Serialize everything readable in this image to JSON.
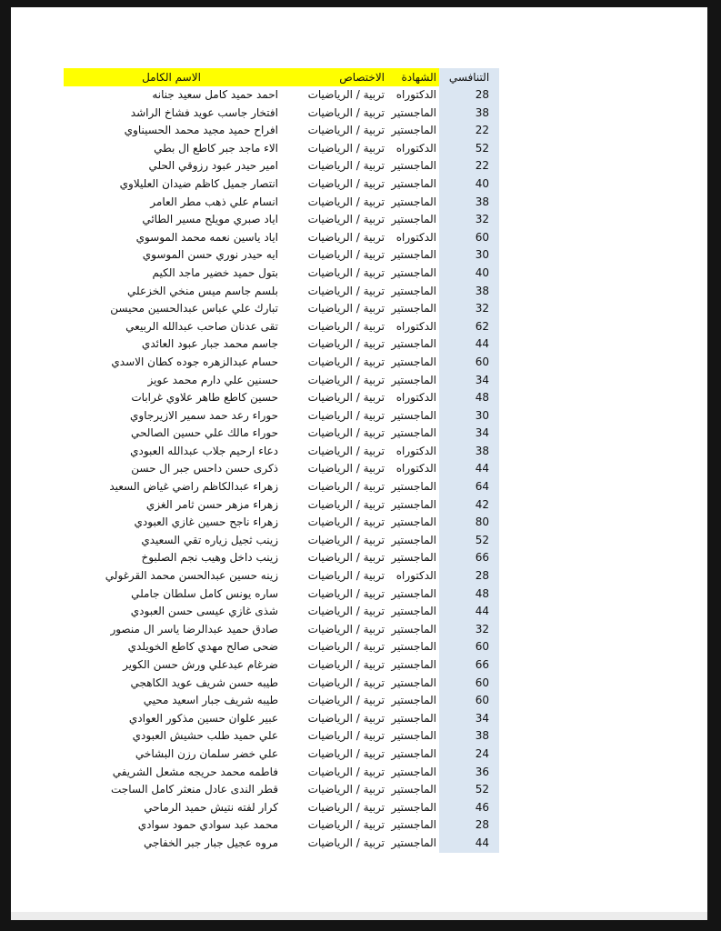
{
  "table": {
    "headers": {
      "competitive": "التنافسي",
      "certificate": "الشهادة",
      "specialization": "الاختصاص",
      "full_name": "الاسم الكامل"
    },
    "colors": {
      "header_highlight": "#ffff00",
      "score_column": "#dbe6f2",
      "frame": "#141414",
      "paper": "#ffffff",
      "text": "#111111"
    },
    "rows": [
      {
        "name": "احمد حميد كامل سعيد جنانه",
        "specialization": "تربية / الرياضيات",
        "certificate": "الدكتوراه",
        "score": "28"
      },
      {
        "name": "افتخار جاسب عويد فشاخ الراشد",
        "specialization": "تربية / الرياضيات",
        "certificate": "الماجستير",
        "score": "38"
      },
      {
        "name": "افراح حميد مجيد محمد الحسيناوي",
        "specialization": "تربية / الرياضيات",
        "certificate": "الماجستير",
        "score": "22"
      },
      {
        "name": "الاء ماجد جبر كاطع ال بطي",
        "specialization": "تربية / الرياضيات",
        "certificate": "الدكتوراه",
        "score": "52"
      },
      {
        "name": "امير حيدر عبود رزوقي الحلي",
        "specialization": "تربية / الرياضيات",
        "certificate": "الماجستير",
        "score": "22"
      },
      {
        "name": "انتصار جميل كاظم ضيدان العليلاوي",
        "specialization": "تربية / الرياضيات",
        "certificate": "الماجستير",
        "score": "40"
      },
      {
        "name": "انسام علي ذهب مطر العامر",
        "specialization": "تربية / الرياضيات",
        "certificate": "الماجستير",
        "score": "38"
      },
      {
        "name": "اياد صبري مويلح مسير الطائي",
        "specialization": "تربية / الرياضيات",
        "certificate": "الماجستير",
        "score": "32"
      },
      {
        "name": "اياد ياسين نعمه محمد الموسوي",
        "specialization": "تربية / الرياضيات",
        "certificate": "الدكتوراه",
        "score": "60"
      },
      {
        "name": "ايه حيدر نوري حسن الموسوي",
        "specialization": "تربية / الرياضيات",
        "certificate": "الماجستير",
        "score": "30"
      },
      {
        "name": "بتول حميد خضير ماجد الكيم",
        "specialization": "تربية / الرياضيات",
        "certificate": "الماجستير",
        "score": "40"
      },
      {
        "name": "بلسم جاسم ميس منخي الخزعلي",
        "specialization": "تربية / الرياضيات",
        "certificate": "الماجستير",
        "score": "38"
      },
      {
        "name": "تبارك علي عباس عبدالحسين محيسن",
        "specialization": "تربية / الرياضيات",
        "certificate": "الماجستير",
        "score": "32"
      },
      {
        "name": "تقى عدنان صاحب عبدالله الربيعي",
        "specialization": "تربية / الرياضيات",
        "certificate": "الدكتوراه",
        "score": "62"
      },
      {
        "name": "جاسم محمد جبار عبود العائدي",
        "specialization": "تربية / الرياضيات",
        "certificate": "الماجستير",
        "score": "44"
      },
      {
        "name": "حسام عبدالزهره جوده كطان الاسدي",
        "specialization": "تربية / الرياضيات",
        "certificate": "الماجستير",
        "score": "60"
      },
      {
        "name": "حسنين علي دارم محمد عويز",
        "specialization": "تربية / الرياضيات",
        "certificate": "الماجستير",
        "score": "34"
      },
      {
        "name": "حسين كاطع طاهر علاوي غرابات",
        "specialization": "تربية / الرياضيات",
        "certificate": "الدكتوراه",
        "score": "48"
      },
      {
        "name": "حوراء رعد حمد سمير الازيرجاوي",
        "specialization": "تربية / الرياضيات",
        "certificate": "الماجستير",
        "score": "30"
      },
      {
        "name": "حوراء مالك علي حسين الصالحي",
        "specialization": "تربية / الرياضيات",
        "certificate": "الماجستير",
        "score": "34"
      },
      {
        "name": "دعاء ارحيم جلاب عبدالله العبودي",
        "specialization": "تربية / الرياضيات",
        "certificate": "الدكتوراه",
        "score": "38"
      },
      {
        "name": "ذكرى حسن داحس جبر ال حسن",
        "specialization": "تربية / الرياضيات",
        "certificate": "الدكتوراه",
        "score": "44"
      },
      {
        "name": "زهراء عبدالكاظم راضي غياض السعيد",
        "specialization": "تربية / الرياضيات",
        "certificate": "الماجستير",
        "score": "64"
      },
      {
        "name": "زهراء مزهر حسن ثامر الغزي",
        "specialization": "تربية / الرياضيات",
        "certificate": "الماجستير",
        "score": "42"
      },
      {
        "name": "زهراء ناجح حسين غازي العبودي",
        "specialization": "تربية / الرياضيات",
        "certificate": "الماجستير",
        "score": "80"
      },
      {
        "name": "زينب ثجيل زياره تقي السعيدي",
        "specialization": "تربية / الرياضيات",
        "certificate": "الماجستير",
        "score": "52"
      },
      {
        "name": "زينب داخل وهيب نجم الصلبوخ",
        "specialization": "تربية / الرياضيات",
        "certificate": "الماجستير",
        "score": "66"
      },
      {
        "name": "زينه حسين عبدالحسن محمد القرغولي",
        "specialization": "تربية / الرياضيات",
        "certificate": "الدكتوراه",
        "score": "28"
      },
      {
        "name": "ساره يونس كامل سلطان جاملي",
        "specialization": "تربية / الرياضيات",
        "certificate": "الماجستير",
        "score": "48"
      },
      {
        "name": "شذى غازي عيسى حسن العبودي",
        "specialization": "تربية / الرياضيات",
        "certificate": "الماجستير",
        "score": "44"
      },
      {
        "name": "صادق حميد عبدالرضا ياسر ال منصور",
        "specialization": "تربية / الرياضيات",
        "certificate": "الماجستير",
        "score": "32"
      },
      {
        "name": "ضحى صالح مهدي كاطع الخويلدي",
        "specialization": "تربية / الرياضيات",
        "certificate": "الماجستير",
        "score": "60"
      },
      {
        "name": "ضرغام عبدعلي ورش حسن الكوير",
        "specialization": "تربية / الرياضيات",
        "certificate": "الماجستير",
        "score": "66"
      },
      {
        "name": "طيبه حسن شريف عويد الكاهجي",
        "specialization": "تربية / الرياضيات",
        "certificate": "الماجستير",
        "score": "60"
      },
      {
        "name": "طيبه شريف جبار اسعيد محيي",
        "specialization": "تربية / الرياضيات",
        "certificate": "الماجستير",
        "score": "60"
      },
      {
        "name": "عبير علوان حسين مذكور العوادي",
        "specialization": "تربية / الرياضيات",
        "certificate": "الماجستير",
        "score": "34"
      },
      {
        "name": "علي حميد طلب حشيش العبودي",
        "specialization": "تربية / الرياضيات",
        "certificate": "الماجستير",
        "score": "38"
      },
      {
        "name": "علي خضر سلمان رزن البشاخي",
        "specialization": "تربية / الرياضيات",
        "certificate": "الماجستير",
        "score": "24"
      },
      {
        "name": "فاطمه محمد حريجه مشعل الشريفي",
        "specialization": "تربية / الرياضيات",
        "certificate": "الماجستير",
        "score": "36"
      },
      {
        "name": "قطر الندى عادل منعثر كامل الساجت",
        "specialization": "تربية / الرياضيات",
        "certificate": "الماجستير",
        "score": "52"
      },
      {
        "name": "كرار لفته نتيش حميد الرماحي",
        "specialization": "تربية / الرياضيات",
        "certificate": "الماجستير",
        "score": "46"
      },
      {
        "name": "محمد عبد سوادي حمود سوادي",
        "specialization": "تربية / الرياضيات",
        "certificate": "الماجستير",
        "score": "28"
      },
      {
        "name": "مروه عجيل جبار جبر الخفاجي",
        "specialization": "تربية / الرياضيات",
        "certificate": "الماجستير",
        "score": "44"
      }
    ]
  }
}
